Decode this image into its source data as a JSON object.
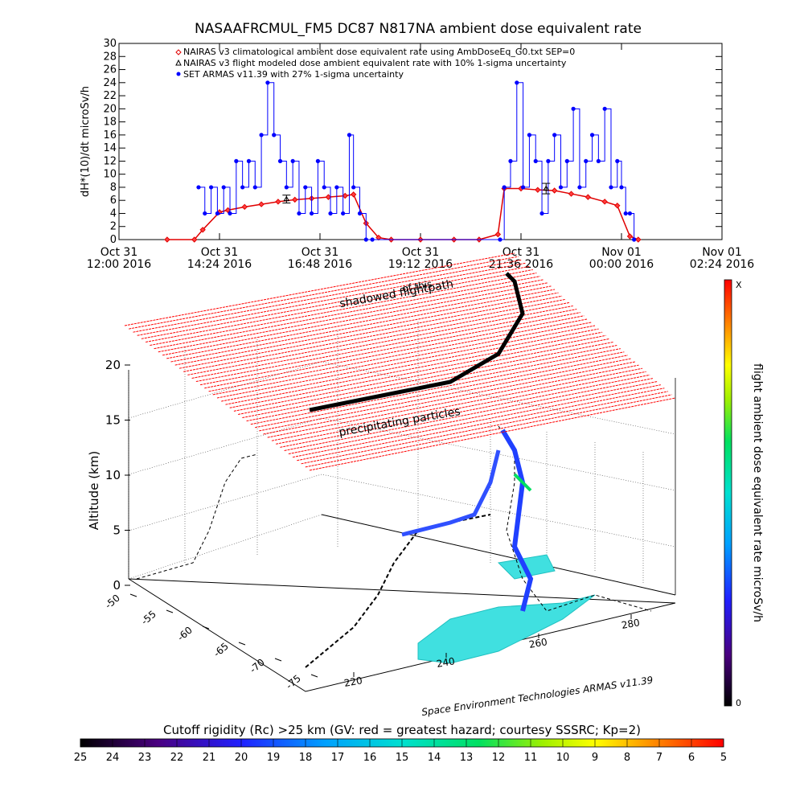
{
  "chart_data": [
    {
      "type": "scatter",
      "title": "NASAAFRCMUL_FM5 DC87 N817NA ambient dose equivalent rate",
      "ylabel": "dH*(10)/dt microSv/h",
      "ylim": [
        0,
        30
      ],
      "yticks": [
        0,
        2,
        4,
        6,
        8,
        10,
        12,
        14,
        16,
        18,
        20,
        22,
        24,
        26,
        28,
        30
      ],
      "xlim_hours": [
        12.0,
        26.4
      ],
      "xticks": [
        {
          "t": 12.0,
          "l1": "Oct 31",
          "l2": "12:00 2016"
        },
        {
          "t": 14.4,
          "l1": "Oct 31",
          "l2": "14:24 2016"
        },
        {
          "t": 16.8,
          "l1": "Oct 31",
          "l2": "16:48 2016"
        },
        {
          "t": 19.2,
          "l1": "Oct 31",
          "l2": "19:12 2016"
        },
        {
          "t": 21.6,
          "l1": "Oct 31",
          "l2": "21:36 2016"
        },
        {
          "t": 24.0,
          "l1": "Nov 01",
          "l2": "00:00 2016"
        },
        {
          "t": 26.4,
          "l1": "Nov 01",
          "l2": "02:24 2016"
        }
      ],
      "legend": [
        {
          "symbol": "diamond",
          "color": "#e00000",
          "label": "NAIRAS v3 climatological ambient dose equivalent rate using AmbDoseEq_G0.txt SEP=0"
        },
        {
          "symbol": "triangle",
          "color": "#000000",
          "label": "NAIRAS v3 flight modeled dose ambient equivalent rate with 10% 1-sigma uncertainty"
        },
        {
          "symbol": "circle",
          "color": "#0000ff",
          "label": "SET ARMAS v11.39 with 27% 1-sigma uncertainty"
        }
      ],
      "series": [
        {
          "name": "NAIRAS v3 climatological ambient dose equivalent rate using AmbDoseEq_G0.txt SEP=0",
          "color": "#e00000",
          "x": [
            13.15,
            13.8,
            14.0,
            14.4,
            14.6,
            15.0,
            15.4,
            15.8,
            16.2,
            16.6,
            17.0,
            17.4,
            17.6,
            17.9,
            18.2,
            18.5,
            19.2,
            20.0,
            20.6,
            21.05,
            21.2,
            21.6,
            22.0,
            22.4,
            22.8,
            23.2,
            23.6,
            23.9,
            24.2,
            24.4
          ],
          "y": [
            0,
            0,
            1.5,
            4.2,
            4.5,
            5.0,
            5.4,
            5.8,
            6.1,
            6.3,
            6.5,
            6.7,
            6.9,
            2.5,
            0.3,
            0,
            0,
            0,
            0,
            0.8,
            7.8,
            7.8,
            7.6,
            7.5,
            7.0,
            6.5,
            5.8,
            5.2,
            0.5,
            0
          ]
        },
        {
          "name": "NAIRAS v3 flight modeled dose ambient equivalent rate with 10% 1-sigma uncertainty",
          "color": "#000000",
          "x": [
            16.0,
            22.2
          ],
          "y": [
            6.2,
            7.8
          ],
          "err": [
            0.6,
            0.8
          ]
        },
        {
          "name": "SET ARMAS v11.39 with 27% 1-sigma uncertainty",
          "color": "#0000ff",
          "x": [
            13.9,
            14.05,
            14.2,
            14.35,
            14.5,
            14.65,
            14.8,
            14.95,
            15.1,
            15.25,
            15.4,
            15.55,
            15.7,
            15.85,
            16.0,
            16.15,
            16.3,
            16.45,
            16.6,
            16.75,
            16.9,
            17.05,
            17.2,
            17.35,
            17.5,
            17.6,
            17.75,
            17.9,
            18.05,
            21.1,
            21.2,
            21.35,
            21.5,
            21.65,
            21.8,
            21.95,
            22.1,
            22.25,
            22.4,
            22.55,
            22.7,
            22.85,
            23.0,
            23.15,
            23.3,
            23.45,
            23.6,
            23.75,
            23.9,
            24.0,
            24.1,
            24.2,
            24.3
          ],
          "y": [
            8,
            4,
            8,
            4,
            8,
            4,
            12,
            8,
            12,
            8,
            16,
            24,
            16,
            12,
            8,
            12,
            4,
            8,
            4,
            12,
            8,
            4,
            8,
            4,
            16,
            8,
            4,
            0,
            0,
            0,
            8,
            12,
            24,
            8,
            16,
            12,
            4,
            12,
            16,
            8,
            12,
            20,
            8,
            12,
            16,
            12,
            20,
            8,
            12,
            8,
            4,
            4,
            0
          ]
        }
      ]
    },
    {
      "type": "scatter",
      "zlabel": "Altitude (km)",
      "zticks": [
        0,
        5,
        10,
        15,
        20
      ],
      "lat_ticks": [
        -50,
        -55,
        -60,
        -65,
        -70,
        -75
      ],
      "lon_ticks": [
        220,
        240,
        260,
        280
      ],
      "annotations": [
        "shadowed flightpath",
        "of this",
        "precipitating particles",
        "Space Environment Technologies ARMAS v11.39"
      ],
      "colorbar_label": "flight ambient dose equivalent rate microSv/h",
      "colorbar_top": "X",
      "colorbar_bottom": "0",
      "rigidity_label": "Cutoff rigidity (Rc) >25 km (GV: red = greatest hazard; courtesy SSSRC; Kp=2)",
      "rigidity_ticks": [
        "25",
        "24",
        "23",
        "22",
        "21",
        "20",
        "19",
        "18",
        "17",
        "16",
        "15",
        "14",
        "13",
        "12",
        "11",
        "10",
        "9",
        "8",
        "7",
        "6",
        "5"
      ]
    }
  ]
}
